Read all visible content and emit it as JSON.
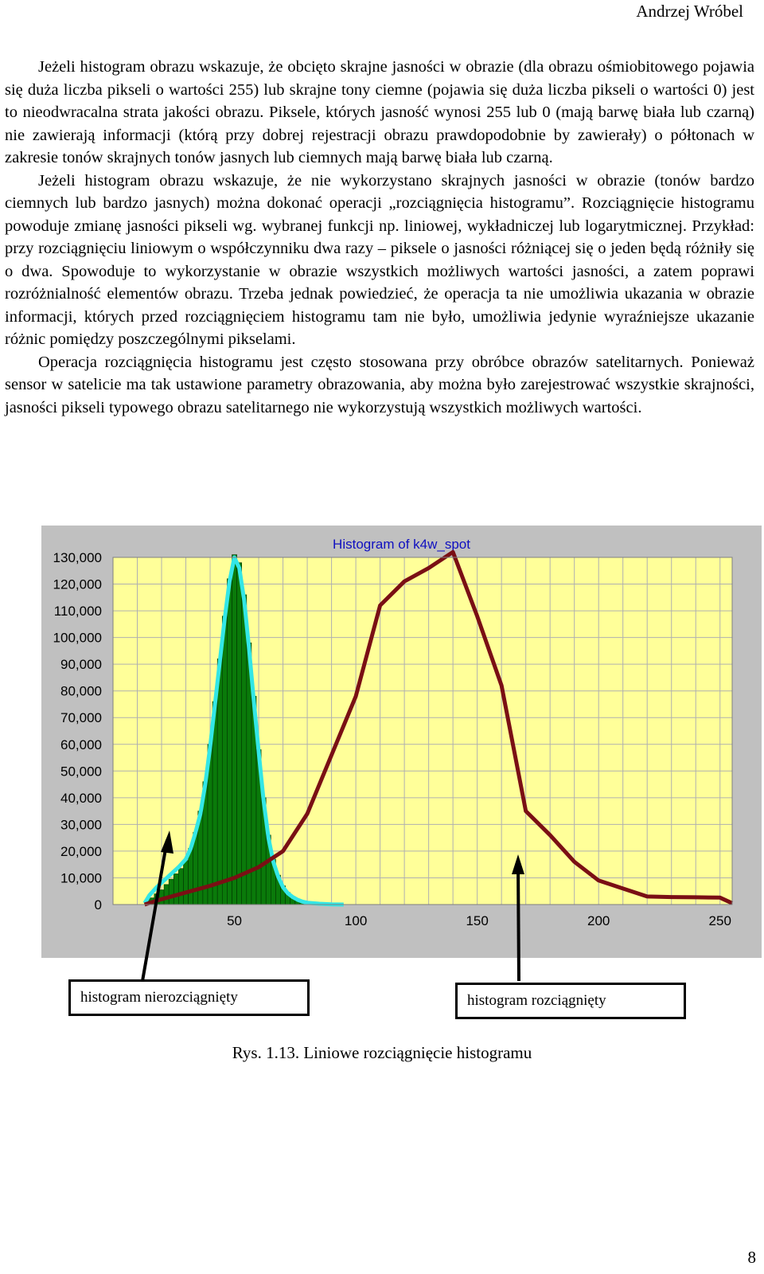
{
  "header": {
    "author": "Andrzej Wróbel"
  },
  "paragraphs": [
    "Jeżeli histogram obrazu wskazuje, że obcięto skrajne jasności w obrazie (dla obrazu ośmiobitowego pojawia się duża liczba pikseli o wartości 255) lub skrajne tony ciemne (pojawia się duża liczba pikseli o wartości 0) jest to nieodwracalna strata jakości obrazu. Piksele, których jasność wynosi 255 lub 0 (mają barwę biała lub czarną) nie zawierają informacji (którą przy dobrej rejestracji obrazu prawdopodobnie by zawierały) o półtonach w zakresie tonów skrajnych tonów jasnych lub ciemnych mają barwę biała lub czarną.",
    "Jeżeli histogram obrazu wskazuje, że nie wykorzystano skrajnych jasności w obrazie (tonów bardzo ciemnych lub bardzo jasnych) można dokonać operacji „rozciągnięcia histogramu”. Rozciągnięcie histogramu powoduje zmianę jasności pikseli wg. wybranej funkcji np. liniowej, wykładniczej lub logarytmicznej. Przykład: przy rozciągnięciu liniowym o współczynniku dwa razy – piksele o jasności różniącej się o jeden będą różniły się o dwa. Spowoduje to wykorzystanie w obrazie wszystkich możliwych wartości jasności, a zatem poprawi rozróżnialność elementów obrazu. Trzeba jednak powiedzieć, że operacja ta nie umożliwia ukazania w obrazie informacji, których przed rozciągnięciem histogramu tam nie było, umożliwia jedynie wyraźniejsze ukazanie różnic pomiędzy poszczególnymi pikselami.",
    "Operacja rozciągnięcia histogramu jest często stosowana przy obróbce obrazów satelitarnych. Ponieważ sensor w satelicie ma tak ustawione parametry obrazowania, aby można było zarejestrować wszystkie skrajności, jasności pikseli typowego obrazu satelitarnego nie wykorzystują wszystkich możliwych wartości."
  ],
  "chart_data": {
    "type": "bar",
    "title": "Histogram of k4w_spot",
    "xlim": [
      0,
      255
    ],
    "ylim": [
      0,
      130000
    ],
    "x_ticks": [
      50,
      100,
      150,
      200,
      250
    ],
    "x_tick_labels": [
      "50",
      "100",
      "150",
      "200",
      "250"
    ],
    "y_ticks": [
      0,
      10000,
      20000,
      30000,
      40000,
      50000,
      60000,
      70000,
      80000,
      90000,
      100000,
      110000,
      120000,
      130000
    ],
    "y_tick_labels": [
      "0",
      "10,000",
      "20,000",
      "30,000",
      "40,000",
      "50,000",
      "60,000",
      "70,000",
      "80,000",
      "90,000",
      "100,000",
      "110,000",
      "120,000",
      "130,000"
    ],
    "grid": true,
    "colors": {
      "plot_bg": "#ffff99",
      "frame_bg": "#c0c0c0",
      "bars": "#0a7a0a",
      "original_line": "#33e6e6",
      "stretched_line": "#7a0f14",
      "title": "#1010c0"
    },
    "bars": {
      "x": [
        14,
        16,
        18,
        20,
        22,
        24,
        26,
        28,
        30,
        32,
        34,
        36,
        38,
        40,
        42,
        44,
        46,
        48,
        50,
        52,
        54,
        56,
        58,
        60,
        62,
        64,
        66,
        68,
        70,
        72,
        74,
        76,
        78,
        80,
        82,
        84,
        86,
        88,
        90
      ],
      "values": [
        1500,
        2500,
        4000,
        5500,
        7500,
        9500,
        11500,
        13500,
        16500,
        21000,
        27000,
        35000,
        46000,
        60000,
        76000,
        92000,
        108000,
        122000,
        131000,
        128000,
        116000,
        98000,
        78000,
        58000,
        40000,
        26000,
        17000,
        11000,
        7000,
        4500,
        3000,
        2000,
        1300,
        800,
        500,
        300,
        200,
        100,
        50
      ]
    },
    "series": [
      {
        "type": "line",
        "x": [
          13,
          15,
          18,
          21,
          24,
          27,
          30,
          32,
          34,
          36,
          38,
          40,
          42,
          44,
          46,
          48,
          50,
          52,
          54,
          56,
          58,
          60,
          62,
          64,
          66,
          68,
          70,
          72,
          74,
          76,
          78,
          80,
          85,
          90,
          95
        ],
        "values": [
          500,
          3500,
          6500,
          9000,
          11500,
          14000,
          17000,
          21000,
          27000,
          34000,
          45000,
          59000,
          75000,
          91000,
          107000,
          121000,
          130000,
          126000,
          114000,
          96000,
          76000,
          57000,
          39000,
          25000,
          16000,
          10500,
          6500,
          4200,
          2800,
          1800,
          1100,
          700,
          300,
          100,
          0
        ]
      },
      {
        "type": "line",
        "x": [
          13,
          20,
          30,
          40,
          50,
          60,
          70,
          80,
          90,
          100,
          110,
          120,
          130,
          140,
          150,
          160,
          170,
          180,
          190,
          200,
          210,
          220,
          230,
          240,
          250,
          255
        ],
        "values": [
          0,
          2000,
          4500,
          7000,
          10000,
          14000,
          20000,
          34000,
          56000,
          78000,
          112000,
          121000,
          126000,
          132000,
          108000,
          82000,
          35000,
          26000,
          16000,
          9000,
          6000,
          3000,
          2800,
          2700,
          2600,
          500
        ]
      }
    ]
  },
  "callouts": {
    "left": "histogram nierozciągnięty",
    "right": "histogram rozciągnięty"
  },
  "caption": "Rys. 1.13. Liniowe rozciągnięcie histogramu",
  "page_number": "8"
}
